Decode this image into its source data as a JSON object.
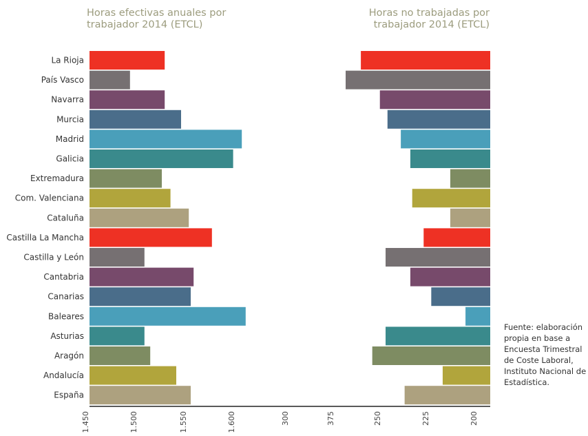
{
  "chart_data": [
    {
      "type": "bar",
      "orientation": "horizontal",
      "title": "Horas efectivas anuales por trabajador 2014 (ETCL)",
      "title_lines": [
        "Horas efectivas anuales por",
        "trabajador 2014 (ETCL)"
      ],
      "categories": [
        "La Rioja",
        "País Vasco",
        "Navarra",
        "Murcia",
        "Madrid",
        "Galicia",
        "Extremadura",
        "Com. Valenciana",
        "Cataluña",
        "Castilla La Mancha",
        "Castilla y León",
        "Cantabria",
        "Canarias",
        "Baleares",
        "Asturias",
        "Aragón",
        "Andalucía",
        "España"
      ],
      "values": [
        1528,
        1492,
        1528,
        1545,
        1608,
        1599,
        1525,
        1534,
        1553,
        1577,
        1507,
        1558,
        1555,
        1612,
        1507,
        1513,
        1540,
        1555
      ],
      "x_ticks": [
        "1.450",
        "1.500",
        "1.550",
        "1.600"
      ],
      "xlim": [
        1450,
        1650
      ],
      "grid": false,
      "legend": "none"
    },
    {
      "type": "bar",
      "orientation": "horizontal",
      "direction": "right-to-left",
      "title": "Horas no trabajadas por trabajador 2014 (ETCL)",
      "title_lines": [
        "Horas no trabajadas por",
        "trabajador 2014 (ETCL)"
      ],
      "categories": [
        "La Rioja",
        "País Vasco",
        "Navarra",
        "Murcia",
        "Madrid",
        "Galicia",
        "Extremadura",
        "Com. Valenciana",
        "Cataluña",
        "Castilla La Mancha",
        "Castilla y León",
        "Cantabria",
        "Canarias",
        "Baleares",
        "Asturias",
        "Aragón",
        "Andalucía",
        "España"
      ],
      "values": [
        268,
        276,
        258,
        254,
        247,
        242,
        221,
        241,
        221,
        235,
        255,
        242,
        231,
        213,
        255,
        262,
        225,
        245
      ],
      "x_ticks": [
        "300",
        "375",
        "250",
        "225",
        "200"
      ],
      "grid": false,
      "legend": "none"
    }
  ],
  "source_note": [
    "Fuente: elaboración",
    "propia en base a",
    "Encuesta Trimestral",
    "de Coste Laboral,",
    "Instituto Nacional de",
    "Estadística."
  ],
  "colors": [
    "#ee3124",
    "#767072",
    "#774a6b",
    "#4a6d8a",
    "#4a9fba",
    "#3a8a8c",
    "#7e8c62",
    "#b1a53c",
    "#ada17f"
  ]
}
